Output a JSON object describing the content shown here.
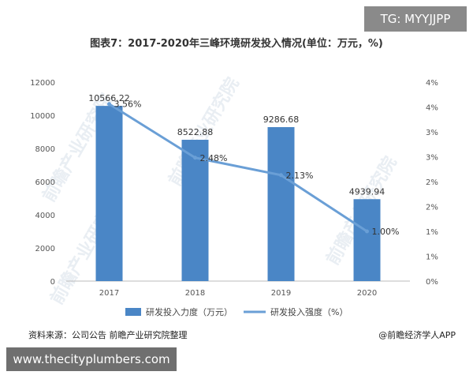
{
  "badge": "TG: MYYJJPP",
  "footer": {
    "source": "资料来源：公司公告 前瞻产业研究院整理",
    "credit": "@前瞻经济学人APP",
    "url": "www.thecityplumbers.com"
  },
  "watermark": "前瞻产业研究院",
  "colors": {
    "bar": "#4a86c6",
    "line": "#6a9fd6",
    "axis_text": "#555555",
    "axis_line": "#bbbbbb"
  },
  "chart_data": {
    "type": "bar+line",
    "title": "图表7：2017-2020年三峰环境研发投入情况(单位：万元，%)",
    "categories": [
      "2017",
      "2018",
      "2019",
      "2020"
    ],
    "series": [
      {
        "name": "研发投入力度（万元）",
        "type": "bar",
        "axis": "left",
        "values": [
          10566.22,
          8522.88,
          9286.68,
          4939.94
        ]
      },
      {
        "name": "研发投入强度（%）",
        "type": "line",
        "axis": "right",
        "values": [
          3.56,
          2.48,
          2.13,
          1.0
        ]
      }
    ],
    "bar_labels": [
      "10566.22",
      "8522.88",
      "9286.68",
      "4939.94"
    ],
    "line_labels": [
      "3.56%",
      "2.48%",
      "2.13%",
      "1.00%"
    ],
    "y_left": {
      "ticks": [
        "0",
        "2000",
        "4000",
        "6000",
        "8000",
        "10000",
        "12000"
      ],
      "lim": [
        0,
        12000
      ]
    },
    "y_right": {
      "ticks": [
        "0%",
        "1%",
        "1%",
        "2%",
        "2%",
        "3%",
        "3%",
        "4%",
        "4%"
      ],
      "lim": [
        0,
        4
      ]
    },
    "legend_position": "bottom",
    "grid": false
  }
}
